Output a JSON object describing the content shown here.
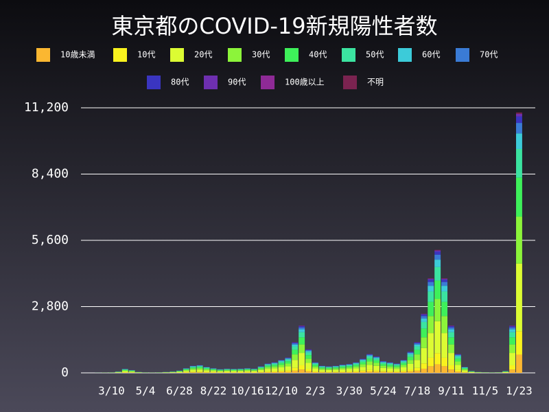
{
  "chart_data": {
    "type": "stacked-bar",
    "title": "東京都のCOVID-19新規陽性者数",
    "categories": [
      null,
      null,
      null,
      null,
      null,
      "3/10",
      null,
      null,
      null,
      null,
      "5/4",
      null,
      null,
      null,
      null,
      "6/28",
      null,
      null,
      null,
      null,
      "8/22",
      null,
      null,
      null,
      null,
      "10/16",
      null,
      null,
      null,
      null,
      "12/10",
      null,
      null,
      null,
      null,
      "2/3",
      null,
      null,
      null,
      null,
      "3/30",
      null,
      null,
      null,
      null,
      "5/24",
      null,
      null,
      null,
      null,
      "7/18",
      null,
      null,
      null,
      null,
      "9/11",
      null,
      null,
      null,
      null,
      "11/5",
      null,
      null,
      null,
      null,
      "1/23"
    ],
    "series": [
      {
        "name": "10歳未満",
        "color": "#fbb731",
        "values": [
          0,
          0,
          0,
          0,
          1,
          1,
          4,
          12,
          8,
          3,
          1,
          1,
          1,
          3,
          4,
          7,
          14,
          21,
          23,
          18,
          14,
          11,
          13,
          12,
          13,
          14,
          13,
          20,
          28,
          32,
          39,
          46,
          91,
          140,
          70,
          32,
          21,
          20,
          21,
          25,
          27,
          32,
          42,
          56,
          49,
          35,
          32,
          28,
          39,
          63,
          91,
          175,
          280,
          364,
          280,
          140,
          56,
          18,
          6,
          3,
          2,
          1,
          2,
          6,
          140,
          770
        ]
      },
      {
        "name": "10代",
        "color": "#f9f21e",
        "values": [
          0,
          0,
          0,
          0,
          1,
          2,
          5,
          15,
          11,
          4,
          2,
          1,
          2,
          4,
          5,
          9,
          18,
          27,
          30,
          23,
          18,
          14,
          16,
          15,
          16,
          18,
          16,
          25,
          36,
          41,
          50,
          59,
          117,
          180,
          90,
          41,
          27,
          25,
          27,
          32,
          34,
          41,
          54,
          72,
          63,
          45,
          41,
          36,
          50,
          81,
          117,
          225,
          360,
          468,
          360,
          180,
          72,
          23,
          7,
          4,
          2,
          2,
          2,
          7,
          180,
          990
        ]
      },
      {
        "name": "20代",
        "color": "#dcfc33",
        "values": [
          0,
          0,
          0,
          1,
          3,
          5,
          16,
          44,
          31,
          10,
          5,
          3,
          5,
          10,
          16,
          26,
          52,
          78,
          86,
          65,
          52,
          42,
          47,
          44,
          47,
          52,
          47,
          73,
          104,
          117,
          143,
          169,
          338,
          520,
          260,
          117,
          78,
          73,
          78,
          91,
          99,
          117,
          156,
          208,
          182,
          130,
          117,
          104,
          143,
          234,
          338,
          650,
          1040,
          1352,
          1040,
          520,
          208,
          65,
          21,
          10,
          7,
          5,
          7,
          21,
          520,
          2860
        ]
      },
      {
        "name": "30代",
        "color": "#8cf43a",
        "values": [
          0,
          0,
          0,
          1,
          2,
          4,
          11,
          31,
          22,
          7,
          4,
          2,
          4,
          7,
          11,
          18,
          36,
          54,
          59,
          45,
          36,
          29,
          32,
          31,
          32,
          36,
          32,
          50,
          72,
          81,
          99,
          117,
          234,
          360,
          180,
          81,
          54,
          50,
          54,
          63,
          68,
          81,
          108,
          144,
          126,
          90,
          81,
          72,
          99,
          162,
          234,
          450,
          720,
          936,
          720,
          360,
          144,
          45,
          14,
          7,
          5,
          4,
          5,
          14,
          360,
          1980
        ]
      },
      {
        "name": "40代",
        "color": "#3ef05a",
        "values": [
          0,
          0,
          0,
          1,
          2,
          3,
          9,
          26,
          18,
          6,
          3,
          2,
          3,
          6,
          9,
          15,
          30,
          45,
          50,
          38,
          30,
          24,
          27,
          26,
          27,
          30,
          27,
          42,
          60,
          68,
          83,
          98,
          195,
          300,
          150,
          68,
          45,
          42,
          45,
          53,
          57,
          68,
          90,
          120,
          105,
          75,
          68,
          60,
          83,
          135,
          195,
          375,
          600,
          780,
          600,
          300,
          120,
          38,
          12,
          6,
          4,
          3,
          4,
          12,
          300,
          1650
        ]
      },
      {
        "name": "50代",
        "color": "#3be3a0",
        "values": [
          0,
          0,
          0,
          1,
          1,
          2,
          7,
          19,
          13,
          4,
          2,
          1,
          2,
          4,
          7,
          11,
          22,
          33,
          36,
          28,
          22,
          18,
          20,
          19,
          20,
          22,
          20,
          31,
          44,
          50,
          61,
          72,
          143,
          220,
          110,
          50,
          33,
          31,
          33,
          39,
          42,
          50,
          66,
          88,
          77,
          55,
          50,
          44,
          61,
          99,
          143,
          275,
          440,
          572,
          440,
          220,
          88,
          28,
          9,
          4,
          3,
          2,
          3,
          9,
          220,
          1210
        ]
      },
      {
        "name": "60代",
        "color": "#3ccbd9",
        "values": [
          0,
          0,
          0,
          0,
          1,
          1,
          4,
          10,
          7,
          2,
          1,
          1,
          1,
          2,
          4,
          6,
          12,
          18,
          20,
          15,
          12,
          10,
          11,
          10,
          11,
          12,
          11,
          17,
          24,
          27,
          33,
          39,
          78,
          120,
          60,
          27,
          18,
          17,
          18,
          21,
          23,
          27,
          36,
          48,
          42,
          30,
          27,
          24,
          33,
          54,
          78,
          150,
          240,
          312,
          240,
          120,
          48,
          15,
          5,
          2,
          2,
          1,
          2,
          5,
          120,
          660
        ]
      },
      {
        "name": "70代",
        "color": "#3a7bd5",
        "values": [
          0,
          0,
          0,
          1,
          0,
          1,
          2,
          7,
          5,
          2,
          1,
          0,
          1,
          2,
          2,
          4,
          8,
          12,
          13,
          10,
          8,
          6,
          7,
          7,
          7,
          8,
          7,
          11,
          16,
          18,
          22,
          26,
          52,
          80,
          40,
          18,
          12,
          11,
          12,
          14,
          15,
          18,
          24,
          32,
          28,
          20,
          18,
          16,
          22,
          36,
          52,
          100,
          160,
          208,
          160,
          80,
          32,
          10,
          3,
          2,
          1,
          1,
          1,
          3,
          80,
          440
        ]
      },
      {
        "name": "80代",
        "color": "#3a35c0",
        "values": [
          0,
          0,
          0,
          0,
          0,
          1,
          1,
          4,
          3,
          1,
          1,
          0,
          0,
          1,
          1,
          3,
          5,
          8,
          8,
          6,
          5,
          4,
          5,
          4,
          5,
          5,
          5,
          7,
          10,
          11,
          14,
          16,
          33,
          50,
          25,
          11,
          8,
          7,
          8,
          9,
          10,
          11,
          15,
          20,
          18,
          13,
          11,
          10,
          14,
          23,
          33,
          63,
          100,
          130,
          100,
          50,
          20,
          6,
          2,
          1,
          1,
          1,
          1,
          2,
          50,
          275
        ]
      },
      {
        "name": "90代",
        "color": "#6e2fb0",
        "values": [
          0,
          0,
          0,
          0,
          0,
          0,
          1,
          2,
          1,
          0,
          0,
          0,
          0,
          0,
          1,
          1,
          2,
          3,
          3,
          3,
          2,
          2,
          2,
          2,
          2,
          2,
          2,
          3,
          4,
          5,
          6,
          7,
          13,
          20,
          10,
          5,
          3,
          3,
          3,
          4,
          4,
          5,
          6,
          8,
          7,
          5,
          5,
          4,
          6,
          9,
          13,
          25,
          40,
          52,
          40,
          20,
          8,
          3,
          1,
          0,
          0,
          0,
          0,
          1,
          20,
          110
        ]
      },
      {
        "name": "100歳以上",
        "color": "#8e2a96",
        "values": [
          0,
          0,
          0,
          0,
          0,
          0,
          0,
          0,
          0,
          0,
          0,
          0,
          0,
          0,
          0,
          0,
          0,
          0,
          0,
          0,
          0,
          0,
          0,
          0,
          0,
          0,
          0,
          0,
          0,
          0,
          0,
          0,
          0,
          0,
          0,
          0,
          0,
          0,
          0,
          0,
          0,
          0,
          0,
          0,
          0,
          0,
          0,
          0,
          0,
          0,
          0,
          0,
          0,
          0,
          0,
          0,
          0,
          0,
          0,
          0,
          0,
          0,
          0,
          0,
          0,
          0
        ]
      },
      {
        "name": "不明",
        "color": "#7a2350",
        "values": [
          0,
          0,
          0,
          0,
          0,
          0,
          0,
          1,
          1,
          0,
          0,
          0,
          0,
          0,
          0,
          1,
          1,
          2,
          2,
          1,
          1,
          1,
          1,
          1,
          1,
          1,
          1,
          1,
          2,
          2,
          3,
          3,
          7,
          10,
          5,
          2,
          2,
          1,
          2,
          2,
          2,
          2,
          3,
          4,
          4,
          3,
          2,
          2,
          3,
          5,
          7,
          13,
          20,
          26,
          20,
          10,
          4,
          1,
          0,
          0,
          0,
          0,
          0,
          0,
          10,
          55
        ]
      }
    ],
    "ylim": [
      0,
      11200
    ],
    "yticks": [
      0,
      {
        "value": 2800,
        "label": "2,800"
      },
      {
        "value": 5600,
        "label": "5,600"
      },
      {
        "value": 8400,
        "label": "8,400"
      },
      {
        "value": 11200,
        "label": "11,200"
      }
    ],
    "grid": true
  }
}
